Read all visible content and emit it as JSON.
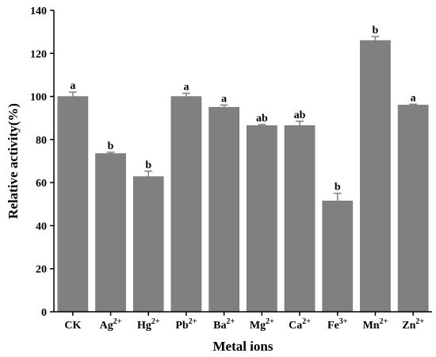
{
  "chart_data": {
    "type": "bar",
    "xlabel": "Metal ions",
    "ylabel": "Relative activity(%)",
    "ylim": [
      0,
      140
    ],
    "yticks": [
      0,
      20,
      40,
      60,
      80,
      100,
      120,
      140
    ],
    "grid": false,
    "bar_color": "#808080",
    "categories": [
      {
        "base": "CK",
        "sup": ""
      },
      {
        "base": "Ag",
        "sup": "2+"
      },
      {
        "base": "Hg",
        "sup": "2+"
      },
      {
        "base": "Pb",
        "sup": "2+"
      },
      {
        "base": "Ba",
        "sup": "2+"
      },
      {
        "base": "Mg",
        "sup": "2+"
      },
      {
        "base": "Ca",
        "sup": "2+"
      },
      {
        "base": "Fe",
        "sup": "3+"
      },
      {
        "base": "Mn",
        "sup": "2+"
      },
      {
        "base": "Zn",
        "sup": "2+"
      }
    ],
    "values": [
      100,
      73.5,
      62.8,
      100,
      95,
      86.5,
      86.5,
      51.5,
      126,
      96
    ],
    "errors": [
      2,
      0.6,
      2.5,
      1.5,
      1,
      0.5,
      2,
      3.5,
      1.8,
      0.4
    ],
    "significance": [
      "a",
      "b",
      "b",
      "a",
      "a",
      "ab",
      "ab",
      "b",
      "b",
      "a"
    ]
  }
}
